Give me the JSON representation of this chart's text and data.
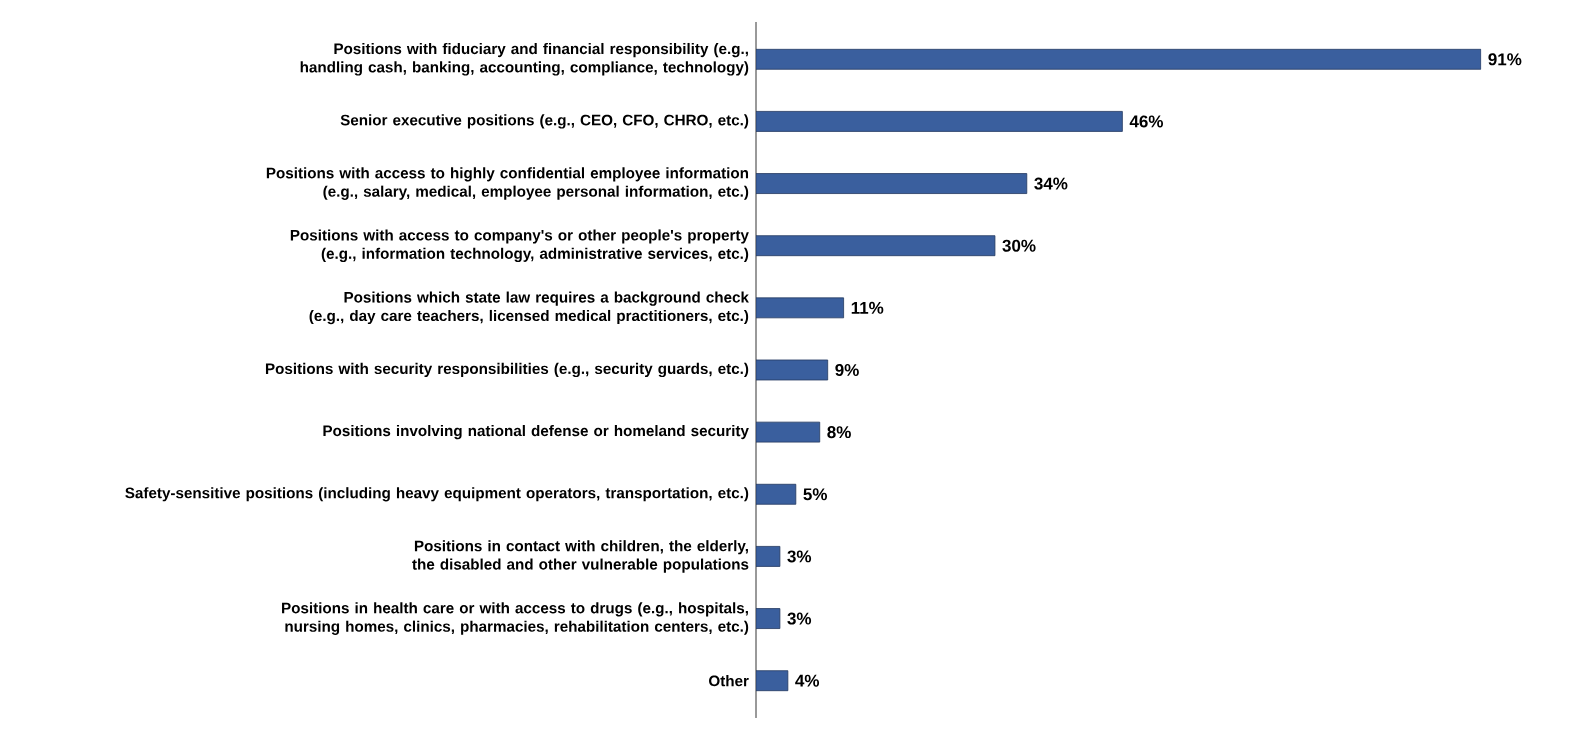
{
  "chart_data": {
    "type": "bar",
    "orientation": "horizontal",
    "categories": [
      "Positions with fiduciary and financial responsibility (e.g., handling cash, banking, accounting, compliance, technology)",
      "Senior executive positions (e.g., CEO, CFO, CHRO, etc.)",
      "Positions with access to highly confidential employee information (e.g., salary, medical, employee personal information, etc.)",
      "Positions with access to company's or other people's property (e.g., information technology, administrative services, etc.)",
      "Positions which state law requires a background check (e.g., day care teachers, licensed medical practitioners, etc.)",
      "Positions with security responsibilities (e.g., security guards, etc.)",
      "Positions involving national defense or homeland security",
      "Safety-sensitive positions (including heavy equipment operators, transportation, etc.)",
      "Positions in contact with children, the elderly, the disabled and other vulnerable populations",
      "Positions in health care or with access to drugs (e.g., hospitals, nursing homes, clinics, pharmacies, rehabilitation centers, etc.)",
      "Other"
    ],
    "values": [
      91,
      46,
      34,
      30,
      11,
      9,
      8,
      5,
      3,
      3,
      4
    ],
    "value_labels": [
      "91%",
      "46%",
      "34%",
      "30%",
      "11%",
      "9%",
      "8%",
      "5%",
      "3%",
      "3%",
      "4%"
    ],
    "color": "#3a5f9e"
  }
}
